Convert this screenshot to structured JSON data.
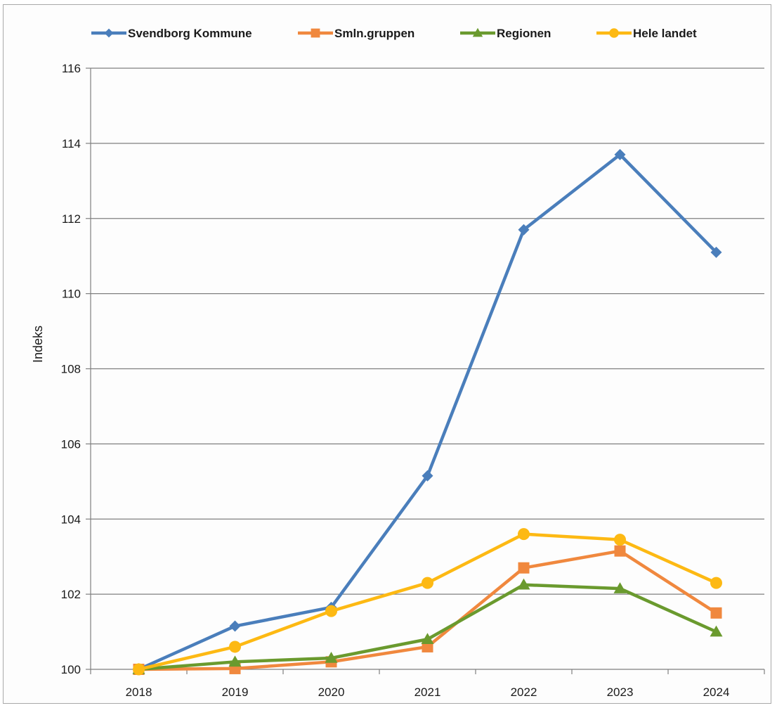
{
  "chart_data": {
    "type": "line",
    "title": "",
    "xlabel": "",
    "ylabel": "Indeks",
    "categories": [
      "2018",
      "2019",
      "2020",
      "2021",
      "2022",
      "2023",
      "2024"
    ],
    "ylim": [
      100,
      116
    ],
    "yticks": [
      100,
      102,
      104,
      106,
      108,
      110,
      112,
      114,
      116
    ],
    "ytick_labels": [
      "100",
      "102",
      "104",
      "106",
      "108",
      "110",
      "112",
      "114",
      "116"
    ],
    "grid": "horizontal",
    "legend_position": "top",
    "series": [
      {
        "name": "Svendborg Kommune",
        "color": "#4a7ebb",
        "marker": "diamond",
        "values": [
          100.0,
          101.15,
          101.65,
          105.15,
          111.7,
          113.7,
          111.1
        ]
      },
      {
        "name": "Smln.gruppen",
        "color": "#f0883e",
        "marker": "square",
        "values": [
          100.0,
          100.02,
          100.2,
          100.6,
          102.7,
          103.15,
          101.5
        ]
      },
      {
        "name": "Regionen",
        "color": "#6a9a2e",
        "marker": "triangle",
        "values": [
          100.0,
          100.2,
          100.3,
          100.8,
          102.25,
          102.15,
          101.0
        ]
      },
      {
        "name": "Hele landet",
        "color": "#fdb913",
        "marker": "circle",
        "values": [
          100.0,
          100.6,
          101.55,
          102.3,
          103.6,
          103.45,
          102.3
        ]
      }
    ]
  }
}
